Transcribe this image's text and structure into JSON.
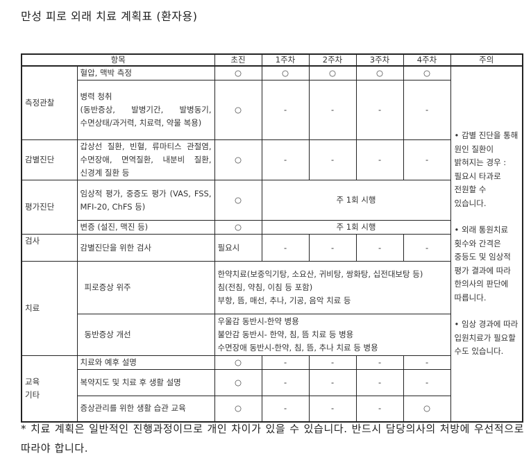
{
  "title": "만성 피로 외래 치료 계획표 (환자용)",
  "table": {
    "headers": [
      "항목",
      "초진",
      "1주차",
      "2주차",
      "3주차",
      "4주차",
      "주의"
    ],
    "groups": [
      {
        "label": "측정관찰",
        "rows": [
          {
            "item": "혈압, 맥박 측정",
            "cells": [
              "○",
              "○",
              "○",
              "○",
              "○"
            ]
          },
          {
            "item": "병력 청취\n(동반증상, 발병기간, 발병동기, 수면상태/과거력, 치료력, 약물 복용)",
            "cells": [
              "○",
              "-",
              "-",
              "-",
              "-"
            ]
          }
        ]
      },
      {
        "label": "감별진단",
        "rows": [
          {
            "item": "갑상선 질환, 빈혈, 류마티스 관절염, 수면장애, 면역질환, 내분비 질환, 신경계 질환 등",
            "cells": [
              "○",
              "-",
              "-",
              "-",
              "-"
            ]
          }
        ]
      },
      {
        "label": "평가진단",
        "rows": [
          {
            "item": "임상적 평가, 중증도 평가 (VAS, FSS, MFI-20, ChFS 등)",
            "cells": [
              "○"
            ],
            "span_text": "주 1회 시행"
          },
          {
            "item": "변증 (설진, 맥진 등)",
            "cells": [
              "○"
            ],
            "span_text": "주 1회 시행"
          }
        ]
      },
      {
        "label": "검사",
        "rows": [
          {
            "item": "감별진단을 위한 검사",
            "cells": [
              "필요시",
              "-",
              "-",
              "-",
              "-"
            ]
          }
        ]
      },
      {
        "label": "치료",
        "rows": [
          {
            "item": "피로증상 위주",
            "full_text": [
              "한약치료(보중익기탕, 소요산, 귀비탕, 쌍화탕, 십전대보탕 등)",
              "침(전침, 약침, 이침 등 포함)",
              "부항, 뜸, 매선, 추나, 기공, 음악 치료 등"
            ]
          },
          {
            "item": "동반증상 개선",
            "full_text": [
              "우울감 동반시-한약 병용",
              "불안감 동반시- 한약, 침, 뜸 치료 등 병용",
              "수면장애 동반시-한약, 침, 뜸, 추나 치료 등 병용"
            ]
          }
        ]
      },
      {
        "label": "교육\n기타",
        "rows": [
          {
            "item": "치료와 예후 설명",
            "cells": [
              "○",
              "-",
              "-",
              "-",
              "-"
            ]
          },
          {
            "item": "복약지도 및 치료 후 생활 설명",
            "cells": [
              "○",
              "-",
              "-",
              "-",
              "-"
            ]
          },
          {
            "item": "증상관리를 위한 생활 습관 교육",
            "cells": [
              "○",
              "-",
              "-",
              "-",
              "○"
            ]
          }
        ]
      }
    ],
    "notes": [
      "• 감별 진단을 통해 원인 질환이 밝혀지는 경우 : 필요시 타과로 전원할 수 있습니다.",
      "• 외래 통원치료 횟수와 간격은 중등도 및 임상적 평가 결과에 따라 한의사의 판단에 따릅니다.",
      "• 임상 경과에 따라 입원치료가 필요할 수도 있습니다."
    ]
  },
  "footer": "* 치료 계획은 일반적인 진행과정이므로 개인 차이가 있을 수 있습니다. 반드시 담당의사의 처방에 우선적으로 따라야 합니다."
}
